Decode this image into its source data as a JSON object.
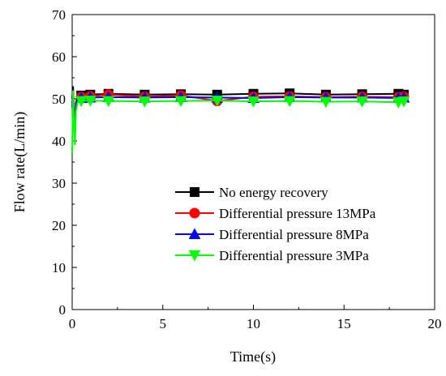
{
  "chart_data": {
    "type": "line",
    "title": "",
    "xlabel": "Time(s)",
    "ylabel": "Flow rate(L/min)",
    "xlim": [
      0,
      20
    ],
    "ylim": [
      0,
      70
    ],
    "xticks": [
      0,
      5,
      10,
      15,
      20
    ],
    "yticks": [
      0,
      10,
      20,
      30,
      40,
      50,
      60,
      70
    ],
    "grid": false,
    "legend_position": "center-right",
    "series": [
      {
        "name": "No energy recovery",
        "color": "#000000",
        "marker": "square",
        "x": [
          0.0,
          0.05,
          0.1,
          0.15,
          0.2,
          0.3,
          0.5,
          1,
          2,
          4,
          6,
          8,
          10,
          12,
          14,
          16,
          18,
          18.3
        ],
        "y": [
          50.0,
          53.0,
          47.0,
          42.0,
          49.0,
          50.5,
          50.8,
          51.0,
          51.2,
          51.0,
          51.1,
          51.0,
          51.2,
          51.3,
          51.0,
          51.1,
          51.2,
          51.0
        ]
      },
      {
        "name": "Differential pressure 13MPa",
        "color": "#ff0000",
        "marker": "circle",
        "x": [
          0.0,
          0.05,
          0.1,
          0.15,
          0.2,
          0.3,
          0.5,
          1,
          2,
          4,
          6,
          8,
          10,
          12,
          14,
          16,
          18,
          18.3
        ],
        "y": [
          49.0,
          52.0,
          46.0,
          41.0,
          48.5,
          50.2,
          50.4,
          50.6,
          51.0,
          50.5,
          50.8,
          49.5,
          50.5,
          50.6,
          50.4,
          50.5,
          50.4,
          50.5
        ]
      },
      {
        "name": "Differential pressure 8MPa",
        "color": "#0000ff",
        "marker": "triangle-up",
        "x": [
          0.0,
          0.05,
          0.1,
          0.15,
          0.2,
          0.3,
          0.5,
          1,
          2,
          4,
          6,
          8,
          10,
          12,
          14,
          16,
          18,
          18.3
        ],
        "y": [
          48.0,
          51.5,
          45.0,
          40.5,
          48.0,
          50.0,
          50.2,
          50.3,
          50.4,
          50.3,
          50.4,
          50.3,
          50.2,
          50.4,
          50.3,
          50.3,
          50.2,
          50.3
        ]
      },
      {
        "name": "Differential pressure 3MPa",
        "color": "#00ff00",
        "marker": "triangle-down",
        "x": [
          0.0,
          0.05,
          0.1,
          0.15,
          0.2,
          0.3,
          0.5,
          1,
          2,
          4,
          6,
          8,
          10,
          12,
          14,
          16,
          18,
          18.3
        ],
        "y": [
          37.0,
          52.0,
          44.0,
          39.0,
          47.0,
          49.2,
          49.5,
          49.6,
          49.5,
          49.4,
          49.5,
          49.6,
          49.4,
          49.5,
          49.3,
          49.4,
          49.2,
          49.4
        ]
      }
    ]
  }
}
